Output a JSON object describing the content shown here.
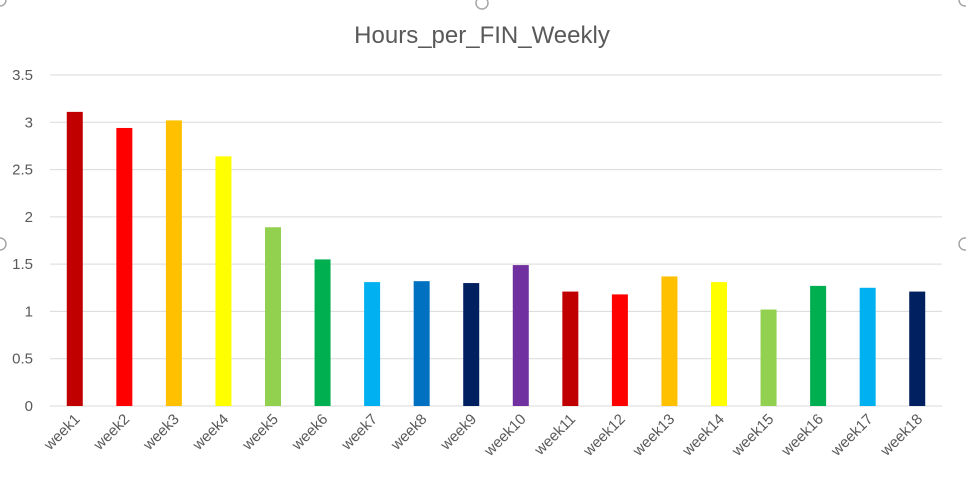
{
  "chart_data": {
    "type": "bar",
    "title": "Hours_per_FIN_Weekly",
    "xlabel": "",
    "ylabel": "",
    "ylim": [
      0,
      3.5
    ],
    "yticks": [
      "0",
      "0.5",
      "1",
      "1.5",
      "2",
      "2.5",
      "3",
      "3.5"
    ],
    "grid": true,
    "legend": "none",
    "categories": [
      "week1",
      "week2",
      "week3",
      "week4",
      "week5",
      "week6",
      "week7",
      "week8",
      "week9",
      "week10",
      "week11",
      "week12",
      "week13",
      "week14",
      "week15",
      "week16",
      "week17",
      "week18"
    ],
    "values": [
      3.11,
      2.94,
      3.02,
      2.64,
      1.89,
      1.55,
      1.31,
      1.32,
      1.3,
      1.49,
      1.21,
      1.18,
      1.37,
      1.31,
      1.02,
      1.27,
      1.25,
      1.21
    ],
    "colors": [
      "#c00000",
      "#ff0000",
      "#ffc000",
      "#ffff00",
      "#92d050",
      "#00b050",
      "#00b0f0",
      "#0070c0",
      "#002060",
      "#7030a0",
      "#c00000",
      "#ff0000",
      "#ffc000",
      "#ffff00",
      "#92d050",
      "#00b050",
      "#00b0f0",
      "#002060"
    ],
    "gridline_color": "#d9d9d9",
    "axis_text_color": "#595959"
  }
}
